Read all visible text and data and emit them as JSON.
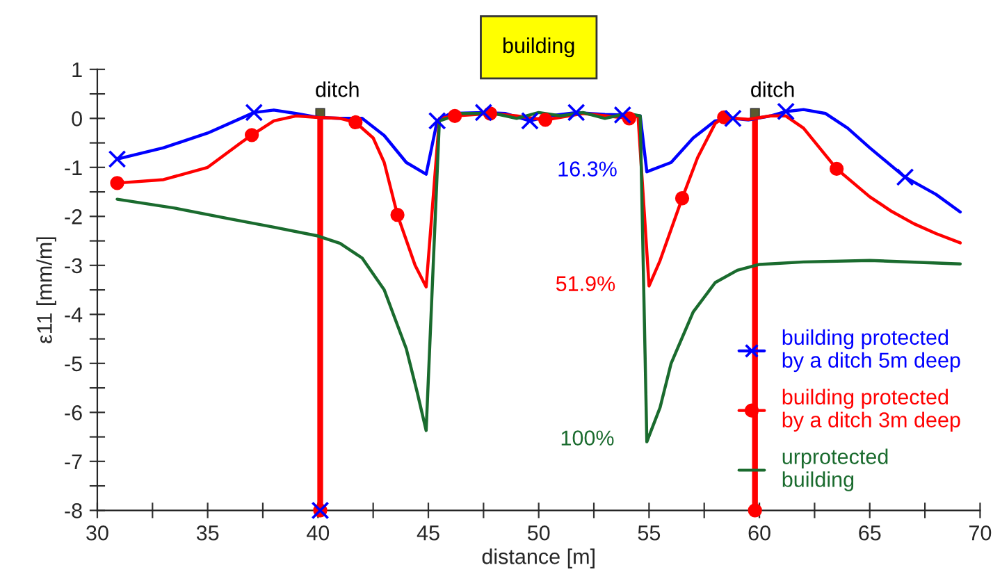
{
  "chart_data": {
    "type": "line",
    "xlabel": "distance [m]",
    "ylabel": "ε11 [mm/m]",
    "xlim": [
      30,
      70
    ],
    "ylim": [
      -8,
      1
    ],
    "xticks": [
      30,
      {
        "value": 32.5,
        "label": null
      },
      35,
      {
        "value": 37.5,
        "label": null
      },
      40,
      {
        "value": 42.5,
        "label": null
      },
      45,
      {
        "value": 47.5,
        "label": null
      },
      50,
      {
        "value": 52.5,
        "label": null
      },
      55,
      {
        "value": 57.5,
        "label": null
      },
      60,
      {
        "value": 62.5,
        "label": null
      },
      65,
      {
        "value": 67.5,
        "label": null
      },
      70
    ],
    "yticks": [
      -8,
      {
        "value": -7.5,
        "label": null
      },
      -7,
      {
        "value": -6.5,
        "label": null
      },
      -6,
      {
        "value": -5.5,
        "label": null
      },
      -5,
      {
        "value": -4.5,
        "label": null
      },
      -4,
      {
        "value": -3.5,
        "label": null
      },
      -3,
      {
        "value": -2.5,
        "label": null
      },
      -2,
      {
        "value": -1.5,
        "label": null
      },
      -1,
      {
        "value": -0.5,
        "label": null
      },
      0,
      {
        "value": 0.5,
        "label": null
      },
      1
    ],
    "grid": false,
    "legend": "bottom right",
    "marker": "none",
    "line_style": "solid",
    "series": [
      {
        "name": "building protected\nby a ditch 5m deep",
        "color": "#0000ff",
        "x": [
          30.9,
          33,
          35,
          37.1,
          38,
          39,
          40,
          41,
          42,
          43,
          44,
          44.9,
          45.4,
          46,
          47.5,
          48.5,
          49.6,
          50.5,
          51.7,
          53,
          53.9,
          54.6,
          54.9,
          56,
          57,
          58,
          58.8,
          59.5,
          60.5,
          61.2,
          62,
          63,
          64,
          65,
          66.6,
          68,
          69.1
        ],
        "values": [
          -0.83,
          -0.6,
          -0.3,
          0.12,
          0.17,
          0.1,
          0.02,
          0.0,
          0.0,
          -0.35,
          -0.9,
          -1.14,
          -0.05,
          0.1,
          0.12,
          0.1,
          -0.05,
          0.05,
          0.12,
          0.08,
          0.07,
          0.05,
          -1.09,
          -0.9,
          -0.4,
          -0.05,
          0.0,
          -0.03,
          0.05,
          0.14,
          0.18,
          0.1,
          -0.2,
          -0.6,
          -1.2,
          -1.55,
          -1.91
        ]
      },
      {
        "type": "scatter",
        "marker": "cross",
        "color": "#0000ff",
        "x": [
          30.9,
          37.1,
          45.4,
          47.5,
          49.6,
          51.7,
          53.8,
          58.8,
          61.2,
          66.6,
          40.1
        ],
        "values": [
          -0.83,
          0.12,
          -0.05,
          0.12,
          -0.05,
          0.12,
          0.07,
          0.0,
          0.14,
          -1.2,
          -8
        ]
      },
      {
        "name": "building protected\nby a ditch 3m deep",
        "color": "#ff0000",
        "x": [
          30.9,
          33,
          35,
          36.5,
          37.0,
          38,
          39,
          40,
          41,
          41.7,
          42.5,
          43,
          43.6,
          44.4,
          44.9,
          45.5,
          46.2,
          47.8,
          49,
          50.3,
          52,
          54.1,
          54.5,
          55.0,
          55.5,
          56.5,
          57.2,
          58,
          58.4,
          59.5,
          60.5,
          61.2,
          62,
          63.5,
          65,
          66,
          67,
          68,
          69.1
        ],
        "values": [
          -1.32,
          -1.25,
          -1.0,
          -0.5,
          -0.34,
          -0.05,
          0.05,
          0.02,
          0.0,
          -0.08,
          -0.4,
          -0.9,
          -1.97,
          -3.0,
          -3.44,
          0.0,
          0.05,
          0.1,
          0.05,
          -0.03,
          0.1,
          0.0,
          0.05,
          -3.42,
          -2.9,
          -1.63,
          -0.8,
          -0.1,
          0.02,
          -0.02,
          0.05,
          0.05,
          -0.2,
          -1.03,
          -1.6,
          -1.9,
          -2.15,
          -2.35,
          -2.54
        ]
      },
      {
        "type": "scatter",
        "marker": "circle",
        "color": "#ff0000",
        "x": [
          30.9,
          37.0,
          41.7,
          43.6,
          46.2,
          47.8,
          50.3,
          54.1,
          56.5,
          58.4,
          63.5,
          40.1,
          59.8
        ],
        "values": [
          -1.32,
          -0.34,
          -0.08,
          -1.97,
          0.05,
          0.1,
          -0.03,
          0.0,
          -1.63,
          0.02,
          -1.03,
          -8,
          -8
        ]
      },
      {
        "name": "urprotected\nbuilding",
        "color": "#1a6b2e",
        "x": [
          30.9,
          33.5,
          36,
          38,
          40,
          41,
          42,
          43,
          44,
          44.5,
          44.9,
          45.5,
          46.5,
          48,
          49,
          50,
          51,
          52,
          53,
          54,
          54.6,
          54.9,
          55.5,
          56,
          57,
          58,
          59,
          60,
          62,
          65,
          69.1
        ],
        "values": [
          -1.65,
          -1.83,
          -2.05,
          -2.22,
          -2.4,
          -2.55,
          -2.85,
          -3.5,
          -4.7,
          -5.6,
          -6.37,
          -0.05,
          0.1,
          0.1,
          0.0,
          0.12,
          0.05,
          0.12,
          0.0,
          0.1,
          0.05,
          -6.6,
          -5.9,
          -5.0,
          -3.95,
          -3.35,
          -3.1,
          -2.98,
          -2.93,
          -2.9,
          -2.97
        ]
      }
    ],
    "ref_lines": [
      {
        "axis": "x",
        "value": 40.1,
        "color": "#ff0000"
      },
      {
        "axis": "x",
        "value": 59.8,
        "color": "#ff0000"
      }
    ],
    "annotations": [
      "building",
      "ditch",
      "ditch",
      "16.3%",
      "51.9%",
      "100%"
    ]
  }
}
